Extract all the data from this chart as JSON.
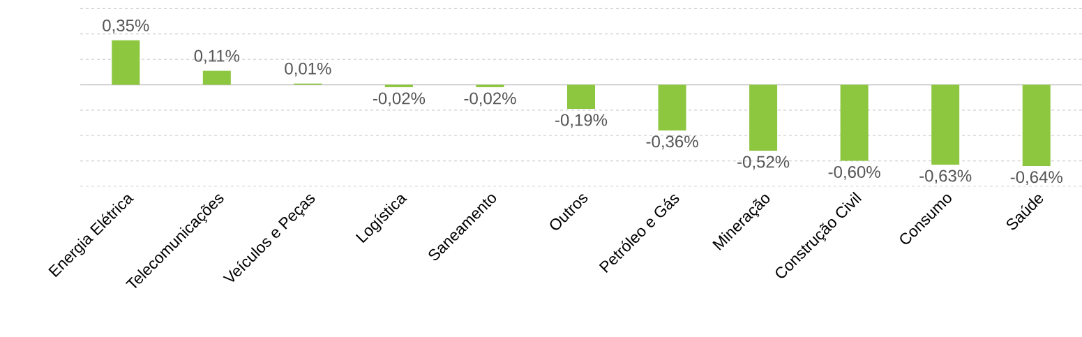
{
  "chart_data": {
    "type": "bar",
    "categories": [
      "Energia Elétrica",
      "Telecomunicações",
      "Veículos e Peças",
      "Logística",
      "Saneamento",
      "Outros",
      "Petróleo e Gás",
      "Mineração",
      "Construção Civil",
      "Consumo",
      "Saúde"
    ],
    "values": [
      0.35,
      0.11,
      0.01,
      -0.02,
      -0.02,
      -0.19,
      -0.36,
      -0.52,
      -0.6,
      -0.63,
      -0.64
    ],
    "value_labels": [
      "0,35%",
      "0,11%",
      "0,01%",
      "-0,02%",
      "-0,02%",
      "-0,19%",
      "-0,36%",
      "-0,52%",
      "-0,60%",
      "-0,63%",
      "-0,64%"
    ],
    "color": "#8dc63f",
    "ylim": [
      -0.8,
      0.6
    ],
    "yticks": [
      -0.8,
      -0.6,
      -0.4,
      -0.2,
      0,
      0.2,
      0.4,
      0.6
    ],
    "grid": "y",
    "tick_labels": "x"
  }
}
